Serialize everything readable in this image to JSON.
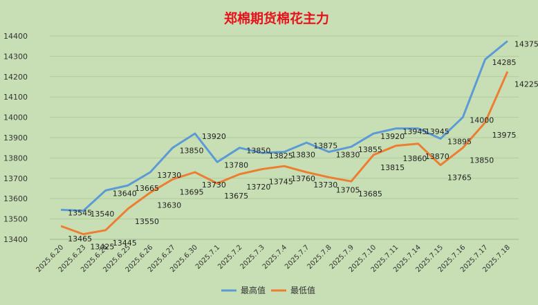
{
  "chart_data": {
    "type": "line",
    "title": "郑棉期货棉花主力",
    "categories": [
      "2025.6.20",
      "2025.6.23",
      "2025.6.24",
      "2025.6.25",
      "2025.6.26",
      "2025.6.27",
      "2025.6.30",
      "2025.7.1",
      "2025.7.2",
      "2025.7.3",
      "2025.7.4",
      "2025.7.7",
      "2025.7.8",
      "2025.7.9",
      "2025.7.10",
      "2025.7.11",
      "2025.7.14",
      "2025.7.15",
      "2025.7.16",
      "2025.7.17",
      "2025.7.18"
    ],
    "series": [
      {
        "name": "最高值",
        "color": "#5b9bd5",
        "values": [
          13545,
          13540,
          13640,
          13665,
          13730,
          13850,
          13920,
          13780,
          13850,
          13825,
          13830,
          13875,
          13830,
          13855,
          13920,
          13945,
          13945,
          13895,
          14000,
          14285,
          14375
        ]
      },
      {
        "name": "最低值",
        "color": "#ed7d31",
        "values": [
          13465,
          13425,
          13445,
          13550,
          13630,
          13695,
          13730,
          13675,
          13720,
          13745,
          13760,
          13730,
          13705,
          13685,
          13815,
          13860,
          13870,
          13765,
          13850,
          13975,
          14225
        ]
      }
    ],
    "ylim": [
      13400,
      14400
    ],
    "yticks": [
      "13400",
      "13500",
      "13600",
      "13700",
      "13800",
      "13900",
      "14000",
      "14100",
      "14200",
      "14300",
      "14400"
    ],
    "grid": true,
    "legend_position": "bottom"
  }
}
